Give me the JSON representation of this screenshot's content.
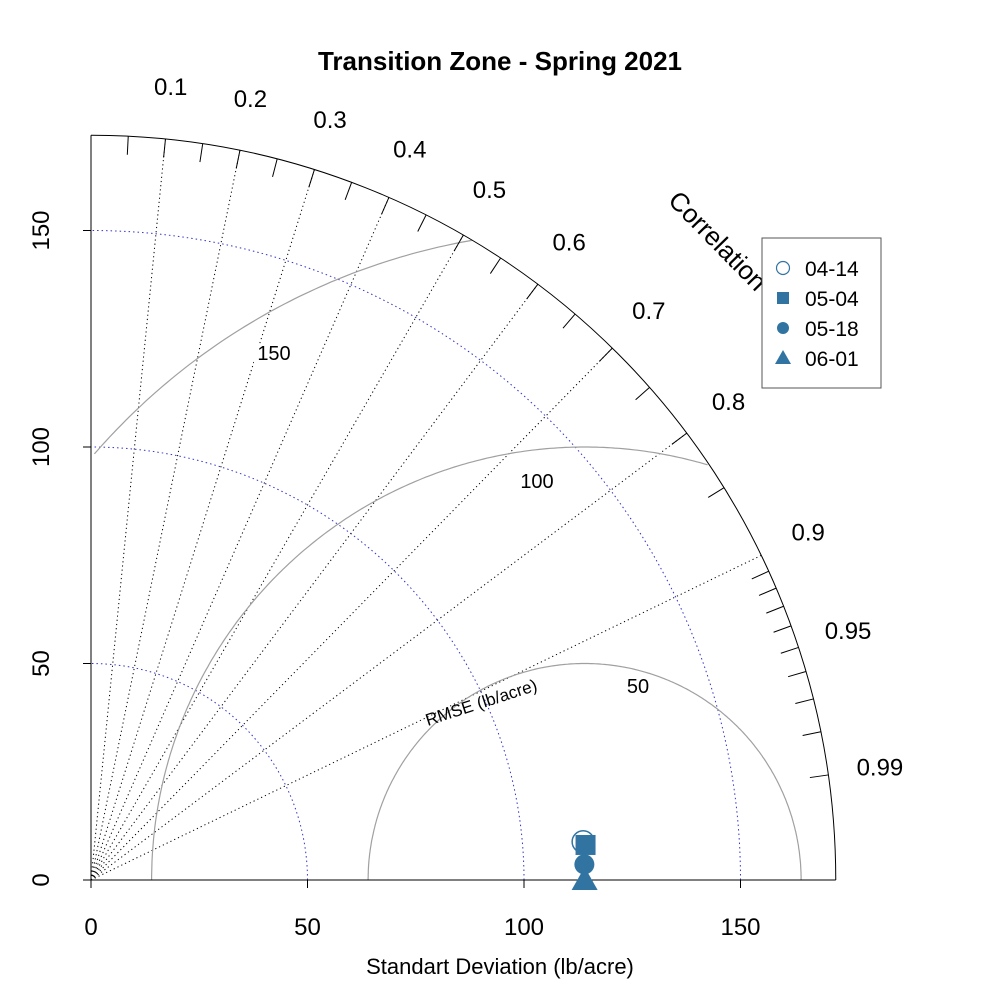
{
  "chart_data": {
    "type": "taylor",
    "title": "Transition Zone - Spring 2021",
    "xlabel": "Standart Deviation (lb/acre)",
    "ylabel": "",
    "sd_max": 172,
    "reference_sd": 114,
    "sd_ticks": [
      0,
      50,
      100,
      150
    ],
    "sd_tick_labels": [
      "0",
      "50",
      "100",
      "150"
    ],
    "correlation_axis_label": "Correlation",
    "correlation_labels": [
      {
        "value": 0.1,
        "text": "0.1"
      },
      {
        "value": 0.2,
        "text": "0.2"
      },
      {
        "value": 0.3,
        "text": "0.3"
      },
      {
        "value": 0.4,
        "text": "0.4"
      },
      {
        "value": 0.5,
        "text": "0.5"
      },
      {
        "value": 0.6,
        "text": "0.6"
      },
      {
        "value": 0.7,
        "text": "0.7"
      },
      {
        "value": 0.8,
        "text": "0.8"
      },
      {
        "value": 0.9,
        "text": "0.9"
      },
      {
        "value": 0.95,
        "text": "0.95"
      },
      {
        "value": 0.99,
        "text": "0.99"
      }
    ],
    "correlation_major_lines": [
      0.2,
      0.4,
      0.6,
      0.8,
      0.9
    ],
    "rmse_label": "RMSE (lb/acre)",
    "rmse_contours": [
      {
        "value": 50,
        "text": "50"
      },
      {
        "value": 100,
        "text": "100"
      },
      {
        "value": 150,
        "text": "150"
      }
    ],
    "sd_arcs": [
      50,
      100,
      150
    ],
    "series": [
      {
        "name": "04-14",
        "marker": "open-circle",
        "sd": 114,
        "correlation": 0.997
      },
      {
        "name": "05-04",
        "marker": "square",
        "sd": 114.5,
        "correlation": 0.9975
      },
      {
        "name": "05-18",
        "marker": "filled-circle",
        "sd": 114,
        "correlation": 0.9995
      },
      {
        "name": "06-01",
        "marker": "triangle",
        "sd": 114,
        "correlation": 1.0
      }
    ],
    "legend_position": "top-right",
    "colors": {
      "marker": "#3274a1",
      "sd_arc": "#3333cc",
      "rmse": "#a0a0a0",
      "corr_line": "#000000"
    }
  }
}
